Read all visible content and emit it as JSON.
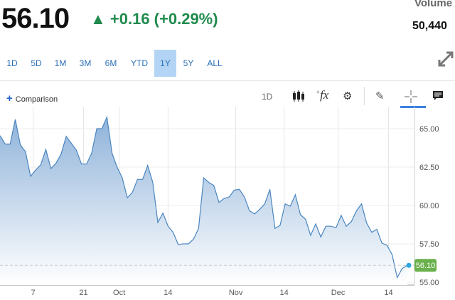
{
  "quote": {
    "price": "56.10",
    "change": "+0.16 (+0.29%)",
    "change_direction": "up",
    "change_color": "#1f8a4c",
    "volume_label": "Volume",
    "volume": "50,440"
  },
  "ranges": [
    {
      "label": "1D"
    },
    {
      "label": "5D"
    },
    {
      "label": "1M"
    },
    {
      "label": "3M"
    },
    {
      "label": "6M"
    },
    {
      "label": "YTD"
    },
    {
      "label": "1Y",
      "active": true
    },
    {
      "label": "5Y"
    },
    {
      "label": "ALL"
    }
  ],
  "toolbar": {
    "comparison_label": "Comparison",
    "interval": "1D",
    "icons": [
      "candlestick-icon",
      "indicator-fx-icon",
      "gear-icon",
      "pencil-icon",
      "crosshair-icon",
      "news-icon"
    ]
  },
  "chart_data": {
    "type": "area",
    "x_ticks": [
      "7",
      "21",
      "Oct",
      "14",
      "Nov",
      "14",
      "Dec",
      "14"
    ],
    "y_ticks": [
      "65.00",
      "62.50",
      "60.00",
      "57.50",
      "55.00"
    ],
    "ylim": [
      54.6,
      66.4
    ],
    "grid": true,
    "line_color": "#4a86c0",
    "last_price_label": "56.10",
    "last_price_color": "#6ab04c",
    "values": [
      64.55,
      64.0,
      64.0,
      65.6,
      63.95,
      63.5,
      61.9,
      62.3,
      62.65,
      63.65,
      62.4,
      62.75,
      63.35,
      64.5,
      64.05,
      63.6,
      62.7,
      62.7,
      63.4,
      65.0,
      65.0,
      65.75,
      63.4,
      62.5,
      61.8,
      60.5,
      60.85,
      61.7,
      61.7,
      62.6,
      61.5,
      58.9,
      59.5,
      58.65,
      58.25,
      57.45,
      57.5,
      57.5,
      57.8,
      58.5,
      61.8,
      61.5,
      61.3,
      60.2,
      60.45,
      60.55,
      61.0,
      61.05,
      60.55,
      59.65,
      59.45,
      59.75,
      60.1,
      61.05,
      58.5,
      58.7,
      60.1,
      59.95,
      60.7,
      59.4,
      59.1,
      58.05,
      58.8,
      57.95,
      58.65,
      58.65,
      58.55,
      59.35,
      58.65,
      58.95,
      59.65,
      60.1,
      58.85,
      58.25,
      58.45,
      57.55,
      57.4,
      56.8,
      55.3,
      55.9,
      56.1
    ]
  }
}
